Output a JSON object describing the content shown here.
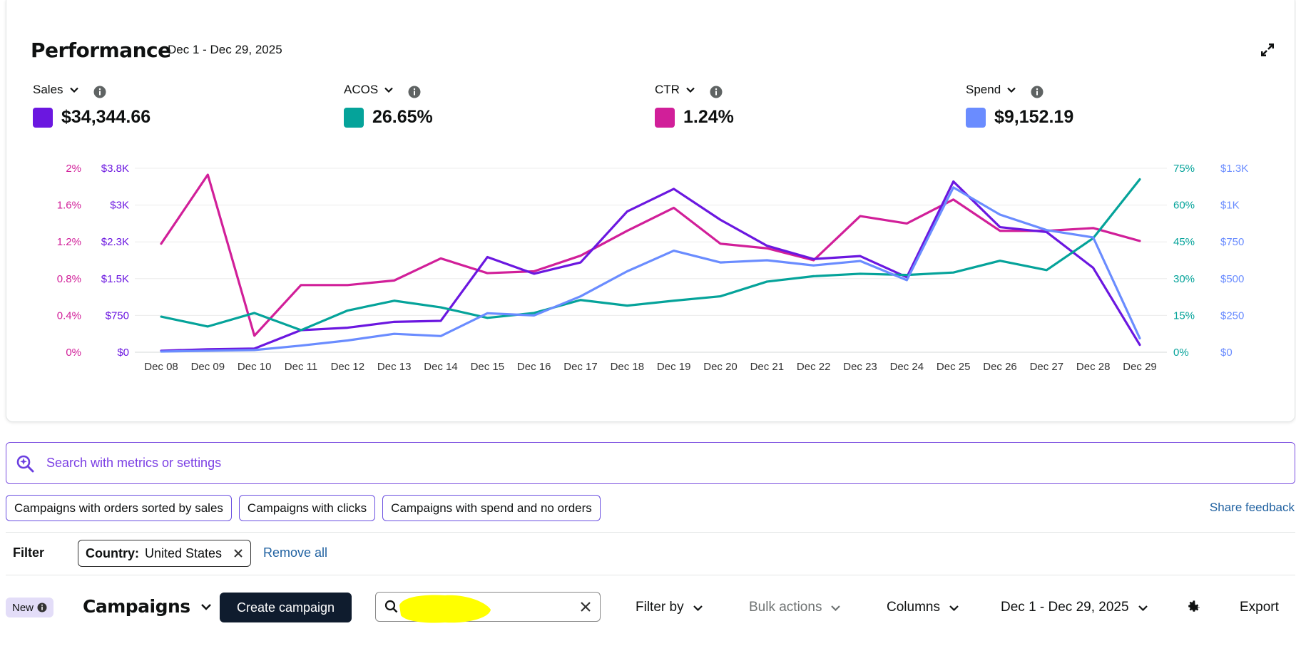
{
  "performance": {
    "title": "Performance",
    "date_range": "Dec 1 - Dec 29, 2025"
  },
  "metrics": [
    {
      "label": "Sales",
      "value": "$34,344.66",
      "color": "#6b17e0"
    },
    {
      "label": "ACOS",
      "value": "26.65%",
      "color": "#05a39a"
    },
    {
      "label": "CTR",
      "value": "1.24%",
      "color": "#d11f99"
    },
    {
      "label": "Spend",
      "value": "$9,152.19",
      "color": "#6a8cff"
    }
  ],
  "chart_data": {
    "type": "line",
    "categories": [
      "Dec 08",
      "Dec 09",
      "Dec 10",
      "Dec 11",
      "Dec 12",
      "Dec 13",
      "Dec 14",
      "Dec 15",
      "Dec 16",
      "Dec 17",
      "Dec 18",
      "Dec 19",
      "Dec 20",
      "Dec 21",
      "Dec 22",
      "Dec 23",
      "Dec 24",
      "Dec 25",
      "Dec 26",
      "Dec 27",
      "Dec 28",
      "Dec 29"
    ],
    "axes": {
      "ctr": {
        "side": "left",
        "ticks": [
          "0%",
          "0.4%",
          "0.8%",
          "1.2%",
          "1.6%",
          "2%"
        ],
        "range": [
          0,
          2
        ],
        "color": "#d11f99"
      },
      "sales": {
        "side": "left",
        "ticks": [
          "$0",
          "$750",
          "$1.5K",
          "$2.3K",
          "$3K",
          "$3.8K"
        ],
        "range": [
          0,
          3750
        ],
        "color": "#6b17e0"
      },
      "acos": {
        "side": "right",
        "ticks": [
          "0%",
          "15%",
          "30%",
          "45%",
          "60%",
          "75%"
        ],
        "range": [
          0,
          75
        ],
        "color": "#05a39a"
      },
      "spend": {
        "side": "right",
        "ticks": [
          "$0",
          "$250",
          "$500",
          "$750",
          "$1K",
          "$1.3K"
        ],
        "range": [
          0,
          1250
        ],
        "color": "#6a8cff"
      }
    },
    "grid": true,
    "series": [
      {
        "name": "CTR",
        "axis": "ctr",
        "color": "#d11f99",
        "values": [
          1.18,
          1.93,
          0.18,
          0.73,
          0.73,
          0.78,
          1.02,
          0.86,
          0.88,
          1.05,
          1.32,
          1.57,
          1.18,
          1.13,
          1.0,
          1.48,
          1.4,
          1.66,
          1.32,
          1.32,
          1.35,
          1.21
        ]
      },
      {
        "name": "Sales",
        "axis": "sales",
        "color": "#6b17e0",
        "values": [
          30,
          60,
          75,
          450,
          500,
          620,
          640,
          1940,
          1600,
          1830,
          2870,
          3330,
          2700,
          2170,
          1900,
          1960,
          1530,
          3480,
          2550,
          2450,
          1720,
          150
        ]
      },
      {
        "name": "ACOS",
        "axis": "acos",
        "color": "#05a39a",
        "values": [
          14.5,
          10.5,
          16,
          9,
          17,
          21,
          18.3,
          14,
          16,
          21.3,
          19,
          21,
          22.8,
          28.8,
          31,
          32,
          31.5,
          32.5,
          37.3,
          33.5,
          46.5,
          70.5
        ]
      },
      {
        "name": "Spend",
        "axis": "spend",
        "color": "#6a8cff",
        "values": [
          5,
          10,
          15,
          45,
          80,
          125,
          110,
          265,
          250,
          380,
          550,
          690,
          610,
          625,
          590,
          620,
          490,
          1120,
          935,
          830,
          780,
          95
        ]
      }
    ]
  },
  "search": {
    "placeholder": "Search with metrics or settings"
  },
  "chips": [
    "Campaigns with orders sorted by sales",
    "Campaigns with clicks",
    "Campaigns with spend and no orders"
  ],
  "share_feedback": "Share feedback",
  "filter": {
    "label": "Filter",
    "pill_key": "Country:",
    "pill_value": "United States",
    "remove_all": "Remove all"
  },
  "toolbar": {
    "new_badge": "New",
    "title": "Campaigns",
    "create_label": "Create campaign",
    "filter_by": "Filter by",
    "bulk_actions": "Bulk actions",
    "columns": "Columns",
    "date_range": "Dec 1 - Dec 29, 2025",
    "export": "Export"
  }
}
